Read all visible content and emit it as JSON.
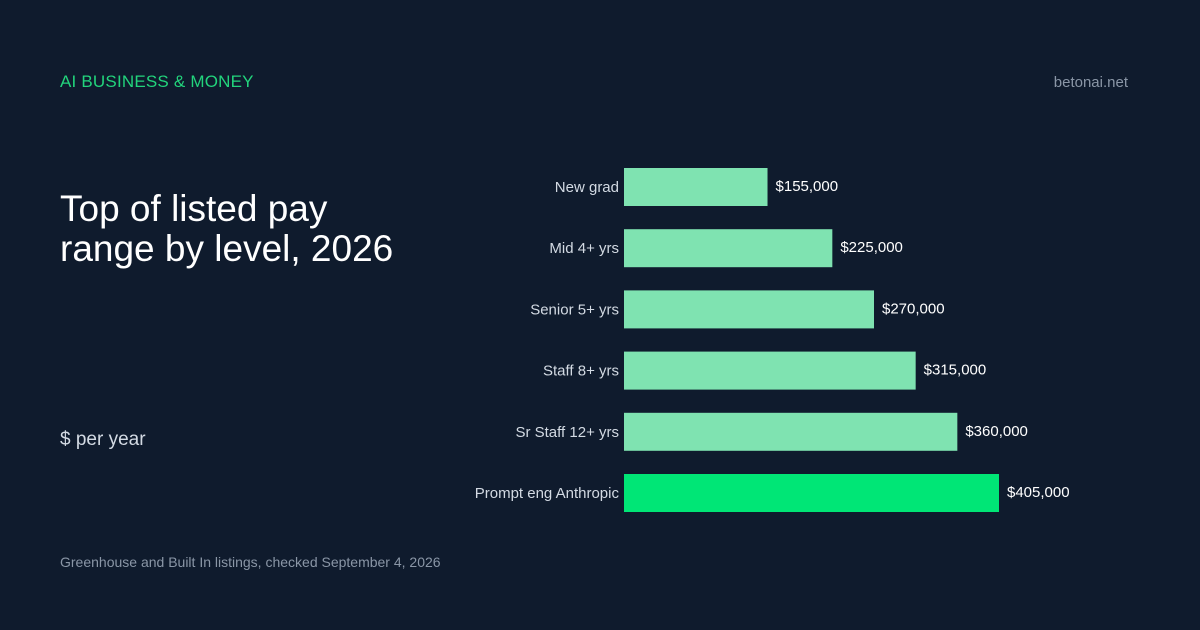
{
  "header": {
    "kicker": "AI BUSINESS & MONEY",
    "site": "betonai.net"
  },
  "headline": "Top of listed pay range by level, 2026",
  "unit_note": "$ per year",
  "source": "Greenhouse and Built In listings, checked September 4, 2026",
  "colors": {
    "background": "#0f1b2d",
    "bar": "#7fe3b1",
    "bar_highlight": "#00e676",
    "accent": "#22d47c"
  },
  "chart_data": {
    "type": "bar",
    "orientation": "horizontal",
    "categories": [
      "New grad",
      "Mid 4+ yrs",
      "Senior 5+ yrs",
      "Staff 8+ yrs",
      "Sr Staff 12+ yrs",
      "Prompt eng Anthropic"
    ],
    "values": [
      155000,
      225000,
      270000,
      315000,
      360000,
      405000
    ],
    "value_labels": [
      "$155,000",
      "$225,000",
      "$270,000",
      "$315,000",
      "$360,000",
      "$405,000"
    ],
    "highlight_index": 5,
    "xlim": [
      0,
      405000
    ],
    "grid": false,
    "legend": "none"
  }
}
